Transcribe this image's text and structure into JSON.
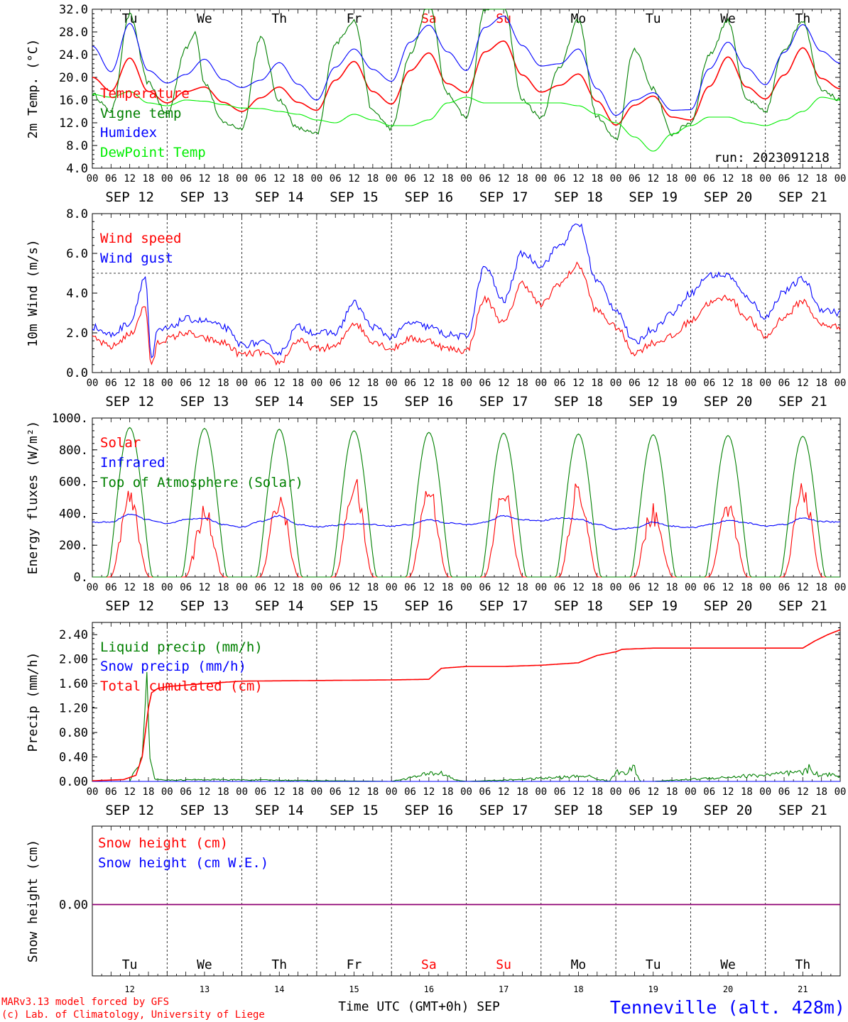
{
  "meteogram": {
    "run_label": "run: 2023091218",
    "footer_model": "MARv3.13 model forced by GFS",
    "footer_lab": "(c) Lab. of Climatology, University of Liege",
    "footer_axis": "Time UTC (GMT+0h) SEP",
    "station": "Tenneville (alt. 428m)",
    "hour_ticks": [
      "00",
      "06",
      "12",
      "18"
    ],
    "final_hour": "00",
    "dates": [
      "SEP 12",
      "SEP 13",
      "SEP 14",
      "SEP 15",
      "SEP 16",
      "SEP 17",
      "SEP 18",
      "SEP 19",
      "SEP 20",
      "SEP 21"
    ],
    "weekdays": [
      "Tu",
      "We",
      "Th",
      "Fr",
      "Sa",
      "Su",
      "Mo",
      "Tu",
      "We",
      "Th"
    ],
    "day_numbers": [
      "12",
      "13",
      "14",
      "15",
      "16",
      "17",
      "18",
      "19",
      "20",
      "21"
    ],
    "weekend_index": [
      4,
      5
    ],
    "colors": {
      "red": "#ff0000",
      "green": "#008000",
      "blue": "#0000ff",
      "lightgreen": "#00ee00",
      "purple": "#800080",
      "black": "#000000"
    }
  },
  "chart_data": [
    {
      "type": "line",
      "id": "temp",
      "ylabel": "2m Temp. (°C)",
      "ylim": [
        4,
        32
      ],
      "yticks": [
        "4.0",
        "8.0",
        "12.0",
        "16.0",
        "20.0",
        "24.0",
        "28.0",
        "32.0"
      ],
      "series": [
        {
          "name": "Temperature",
          "color": "#ff0000",
          "x": [
            0,
            6,
            12,
            18,
            24,
            30,
            36,
            42,
            48,
            54,
            60,
            66,
            72,
            78,
            84,
            90,
            96,
            102,
            108,
            114,
            120,
            126,
            132,
            138,
            144,
            150,
            156,
            162,
            168,
            174,
            180,
            186,
            192,
            198,
            204,
            210,
            216,
            222,
            228,
            234,
            240
          ],
          "values": [
            20.0,
            17.6,
            23.4,
            17.5,
            15.5,
            17.5,
            18.3,
            15.6,
            14.0,
            16.4,
            18.3,
            15.6,
            14.2,
            19.5,
            22.8,
            17.5,
            15.3,
            21.2,
            24.3,
            18.9,
            17.3,
            24.5,
            26.4,
            20.4,
            17.4,
            18.6,
            20.6,
            15.8,
            11.6,
            15.1,
            16.7,
            13.0,
            12.5,
            18.4,
            23.6,
            18.3,
            16.2,
            20.4,
            25.2,
            19.8,
            18.0
          ]
        },
        {
          "name": "Vigne temp",
          "color": "#008000",
          "x": [
            0,
            6,
            12,
            18,
            24,
            30,
            33,
            36,
            42,
            48,
            54,
            60,
            66,
            72,
            78,
            84,
            90,
            96,
            102,
            108,
            114,
            120,
            126,
            132,
            138,
            144,
            150,
            156,
            162,
            168,
            174,
            180,
            186,
            192,
            198,
            204,
            210,
            216,
            222,
            228,
            234,
            240
          ],
          "values": [
            17.0,
            14.0,
            31.0,
            19.0,
            13.5,
            25.0,
            28.0,
            19.0,
            12.0,
            11.0,
            27.0,
            16.0,
            11.0,
            10.0,
            26.0,
            30.0,
            14.0,
            11.0,
            24.0,
            33.0,
            17.0,
            13.0,
            32.0,
            33.0,
            16.0,
            13.0,
            22.0,
            30.0,
            13.0,
            9.0,
            25.0,
            18.0,
            10.0,
            12.0,
            24.0,
            30.0,
            16.0,
            14.0,
            25.0,
            30.0,
            18.0,
            16.0
          ]
        },
        {
          "name": "Humidex",
          "color": "#0000ff",
          "x": [
            0,
            6,
            12,
            18,
            24,
            30,
            36,
            42,
            48,
            54,
            60,
            66,
            72,
            78,
            84,
            90,
            96,
            102,
            108,
            114,
            120,
            126,
            132,
            138,
            144,
            150,
            156,
            162,
            168,
            174,
            180,
            186,
            192,
            198,
            204,
            210,
            216,
            222,
            228,
            234,
            240
          ],
          "values": [
            25.5,
            21.0,
            29.5,
            21.2,
            19.0,
            20.5,
            23.2,
            19.6,
            18.2,
            19.5,
            22.6,
            18.8,
            16.0,
            21.8,
            25.0,
            21.4,
            19.3,
            26.2,
            29.2,
            24.5,
            21.2,
            28.8,
            30.8,
            25.6,
            22.0,
            22.4,
            25.0,
            18.0,
            13.3,
            16.0,
            17.3,
            14.2,
            14.3,
            21.5,
            26.2,
            21.6,
            18.7,
            24.4,
            29.3,
            24.6,
            22.5
          ]
        },
        {
          "name": "DewPoint Temp",
          "color": "#00ee00",
          "x": [
            0,
            6,
            12,
            18,
            24,
            30,
            36,
            42,
            48,
            54,
            60,
            66,
            72,
            78,
            84,
            90,
            96,
            102,
            108,
            114,
            120,
            126,
            132,
            138,
            144,
            150,
            156,
            162,
            168,
            174,
            180,
            186,
            192,
            198,
            204,
            210,
            216,
            222,
            228,
            234,
            240
          ],
          "values": [
            17.0,
            16.5,
            17.5,
            15.5,
            15.0,
            16.0,
            15.8,
            15.2,
            14.6,
            14.5,
            14.0,
            13.5,
            12.5,
            12.0,
            13.5,
            12.5,
            11.5,
            11.5,
            12.5,
            15.5,
            16.5,
            15.5,
            15.5,
            15.5,
            15.5,
            15.5,
            15.0,
            13.5,
            12.0,
            9.5,
            7.0,
            10.0,
            11.5,
            13.0,
            13.0,
            12.0,
            11.5,
            12.5,
            14.0,
            16.5,
            16.0
          ]
        }
      ]
    },
    {
      "type": "line",
      "id": "wind",
      "ylabel": "10m Wind (m/s)",
      "ylim": [
        0,
        8
      ],
      "yticks": [
        "0.0",
        "2.0",
        "4.0",
        "6.0",
        "8.0"
      ],
      "reference_line": 5,
      "series": [
        {
          "name": "Wind speed",
          "color": "#ff0000",
          "x": [
            0,
            6,
            12,
            17,
            19,
            21,
            24,
            30,
            36,
            42,
            48,
            54,
            60,
            66,
            72,
            78,
            84,
            90,
            96,
            102,
            108,
            114,
            120,
            126,
            132,
            138,
            144,
            150,
            156,
            162,
            168,
            174,
            180,
            186,
            192,
            198,
            204,
            210,
            216,
            222,
            228,
            234,
            240
          ],
          "values": [
            1.7,
            1.3,
            1.9,
            3.3,
            0.3,
            1.5,
            1.7,
            2.0,
            1.7,
            1.5,
            0.9,
            1.0,
            0.5,
            1.6,
            1.2,
            1.3,
            2.5,
            1.6,
            1.2,
            1.7,
            1.6,
            1.2,
            1.1,
            3.7,
            2.5,
            4.5,
            3.4,
            4.5,
            5.4,
            3.1,
            2.3,
            1.0,
            1.5,
            1.8,
            2.6,
            3.5,
            3.8,
            2.8,
            1.8,
            2.8,
            3.6,
            2.4,
            2.3
          ]
        },
        {
          "name": "Wind gust",
          "color": "#0000ff",
          "x": [
            0,
            6,
            12,
            17,
            19,
            21,
            24,
            30,
            36,
            42,
            48,
            54,
            60,
            66,
            72,
            78,
            84,
            90,
            96,
            102,
            108,
            114,
            120,
            126,
            132,
            138,
            144,
            150,
            156,
            162,
            168,
            174,
            180,
            186,
            192,
            198,
            204,
            210,
            216,
            222,
            228,
            234,
            240
          ],
          "values": [
            2.3,
            1.9,
            2.5,
            4.8,
            0.6,
            2.1,
            2.2,
            2.7,
            2.6,
            2.3,
            1.4,
            1.5,
            1.0,
            2.3,
            2.0,
            2.0,
            3.5,
            2.3,
            1.8,
            2.5,
            2.3,
            1.9,
            1.8,
            5.3,
            3.6,
            6.0,
            5.4,
            6.4,
            7.5,
            4.6,
            3.2,
            1.5,
            2.2,
            3.0,
            4.0,
            4.9,
            4.9,
            3.8,
            2.8,
            4.1,
            4.7,
            3.2,
            3.0
          ]
        }
      ]
    },
    {
      "type": "line",
      "id": "energy",
      "ylabel": "Energy fluxes (W/m²)",
      "ylim": [
        0,
        1000
      ],
      "yticks": [
        "0.",
        "200.",
        "400.",
        "600.",
        "800.",
        "1000."
      ],
      "series": [
        {
          "name": "Solar",
          "color": "#ff0000",
          "peaks": [
            550,
            530,
            550,
            660,
            620,
            600,
            630,
            560,
            500,
            620
          ],
          "peak_hour": 12
        },
        {
          "name": "Infrared",
          "color": "#0000ff",
          "x": [
            0,
            6,
            12,
            18,
            24,
            30,
            36,
            42,
            48,
            54,
            60,
            66,
            72,
            78,
            84,
            90,
            96,
            102,
            108,
            114,
            120,
            126,
            132,
            138,
            144,
            150,
            156,
            162,
            168,
            174,
            180,
            186,
            192,
            198,
            204,
            210,
            216,
            222,
            228,
            234,
            240
          ],
          "values": [
            345,
            345,
            395,
            360,
            335,
            360,
            370,
            330,
            315,
            350,
            385,
            330,
            315,
            325,
            335,
            330,
            320,
            330,
            360,
            340,
            330,
            345,
            385,
            360,
            355,
            370,
            365,
            330,
            300,
            310,
            345,
            320,
            310,
            330,
            355,
            340,
            320,
            330,
            370,
            350,
            345
          ]
        },
        {
          "name": "Top of Atmosphere (Solar)",
          "color": "#008000",
          "peaks": [
            940,
            935,
            930,
            920,
            910,
            905,
            900,
            895,
            890,
            885
          ],
          "peak_hour": 12
        }
      ]
    },
    {
      "type": "line",
      "id": "precip",
      "ylabel": "Precip (mm/h)",
      "ylim": [
        0,
        2.6
      ],
      "yticks": [
        "0.00",
        "0.40",
        "0.80",
        "1.20",
        "1.60",
        "2.00",
        "2.40"
      ],
      "series": [
        {
          "name": "Liquid precip (mm/h)",
          "color": "#008000",
          "x": [
            0,
            12,
            14,
            15,
            16,
            17,
            18,
            19,
            20,
            24,
            36,
            60,
            96,
            108,
            110,
            112,
            114,
            116,
            120,
            132,
            156,
            158,
            162,
            166,
            168,
            174,
            176,
            178,
            180,
            228,
            230,
            232,
            234,
            236,
            238,
            240
          ],
          "values": [
            0,
            0,
            0.2,
            0.4,
            0.5,
            1.78,
            0.95,
            0.2,
            0.05,
            0.02,
            0.03,
            0.02,
            0,
            0.12,
            0.14,
            0.13,
            0.1,
            0.03,
            0,
            0.02,
            0.08,
            0.1,
            0.04,
            0,
            0.15,
            0.2,
            0,
            0,
            0,
            0.14,
            0.2,
            0.16,
            0.08,
            0.12,
            0.1,
            0.1
          ]
        },
        {
          "name": "Snow precip (mm/h)",
          "color": "#0000ff",
          "x": [
            0,
            240
          ],
          "values": [
            0,
            0
          ]
        },
        {
          "name": "Total cumulated (cm)",
          "color": "#ff0000",
          "x": [
            0,
            10,
            14,
            16,
            17,
            18,
            19,
            21,
            24,
            36,
            48,
            72,
            96,
            108,
            112,
            120,
            132,
            144,
            150,
            156,
            162,
            168,
            170,
            180,
            192,
            216,
            228,
            232,
            236,
            240
          ],
          "values": [
            0.01,
            0.03,
            0.1,
            0.4,
            0.8,
            1.2,
            1.45,
            1.52,
            1.55,
            1.6,
            1.64,
            1.65,
            1.66,
            1.67,
            1.85,
            1.88,
            1.88,
            1.9,
            1.92,
            1.94,
            2.06,
            2.12,
            2.16,
            2.18,
            2.18,
            2.18,
            2.18,
            2.3,
            2.4,
            2.48
          ]
        }
      ]
    },
    {
      "type": "line",
      "id": "snow",
      "ylabel": "Snow height (cm)",
      "yticks": [
        "0.00"
      ],
      "series": [
        {
          "name": "Snow height (cm)",
          "color": "#ff0000",
          "x": [
            0,
            240
          ],
          "values": [
            0,
            0
          ]
        },
        {
          "name": "Snow height (cm W.E.)",
          "color": "#0000ff",
          "x": [
            0,
            240
          ],
          "values": [
            0,
            0
          ]
        }
      ]
    }
  ]
}
